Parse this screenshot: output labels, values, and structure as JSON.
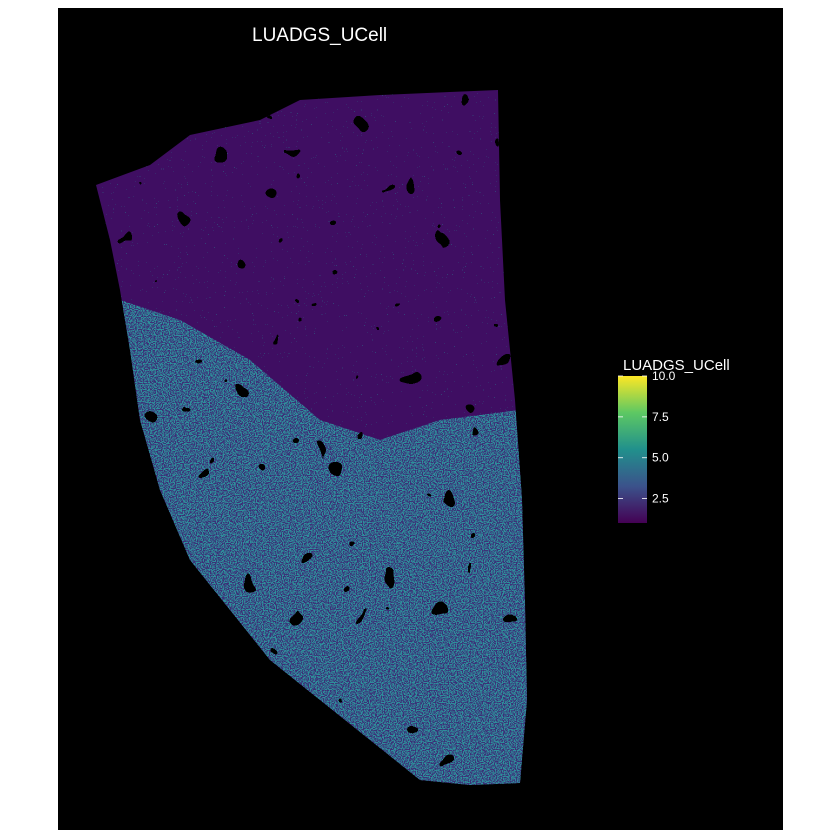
{
  "chart_data": {
    "type": "heatmap",
    "title": "LUADGS_UCell",
    "xlabel": "",
    "ylabel": "",
    "background_color": "#000000",
    "grid": false,
    "axes_visible": false,
    "legend": {
      "title": "LUADGS_UCell",
      "placement": "right",
      "range": [
        1,
        10
      ],
      "ticks": [
        2.5,
        5.0,
        7.5,
        10.0
      ],
      "tick_labels": [
        "2.5",
        "5.0",
        "7.5",
        "10.0"
      ],
      "colormap": "viridis",
      "colors": [
        "#440154",
        "#3b528b",
        "#21908c",
        "#5dc863",
        "#fde725"
      ]
    },
    "regions": [
      {
        "name": "upper tissue",
        "typical_value": 1.5
      },
      {
        "name": "lower tissue band",
        "typical_value": 4.5
      }
    ]
  }
}
